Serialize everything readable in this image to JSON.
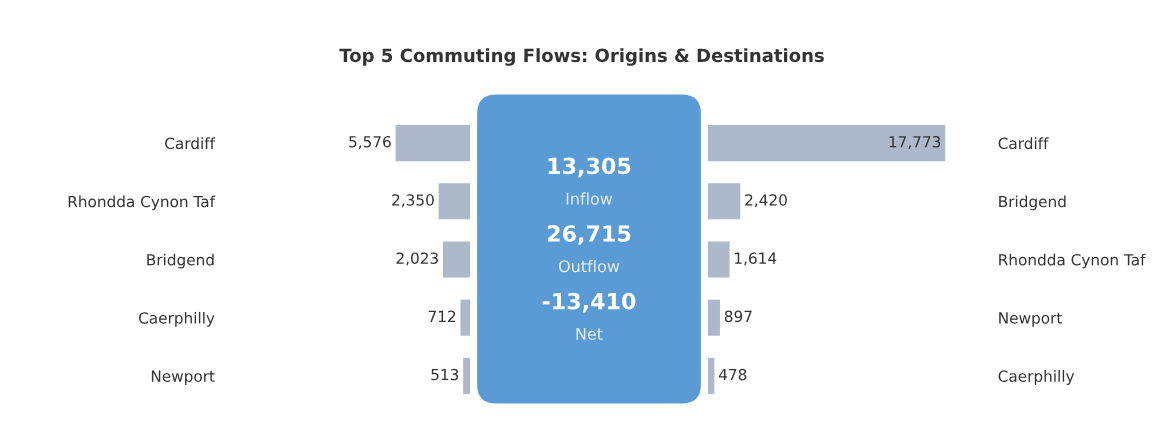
{
  "chart_data": [
    {
      "type": "bar",
      "orientation": "horizontal",
      "title": "Top 5 Commuting Flows: Origins & Destinations",
      "categories": [
        "Cardiff",
        "Rhondda Cynon Taf",
        "Bridgend",
        "Caerphilly",
        "Newport"
      ],
      "values": [
        5576,
        2350,
        2023,
        712,
        513
      ],
      "value_labels": [
        "5,576",
        "2,350",
        "2,023",
        "712",
        "513"
      ],
      "color": "#adb9ca",
      "tick_labels": "y"
    },
    {
      "type": "other",
      "color": "#5b9bd5",
      "categories": [
        "Inflow",
        "Outflow",
        "Net"
      ],
      "values": [
        13305,
        26715,
        -13410
      ],
      "value_labels": [
        "13,305",
        "26,715",
        "-13,410"
      ]
    },
    {
      "type": "bar",
      "orientation": "horizontal",
      "categories": [
        "Cardiff",
        "Bridgend",
        "Rhondda Cynon Taf",
        "Newport",
        "Caerphilly"
      ],
      "values": [
        17773,
        2420,
        1614,
        897,
        478
      ],
      "value_labels": [
        "17,773",
        "2,420",
        "1,614",
        "897",
        "478"
      ],
      "color": "#adb9ca",
      "tick_labels": "y"
    }
  ]
}
